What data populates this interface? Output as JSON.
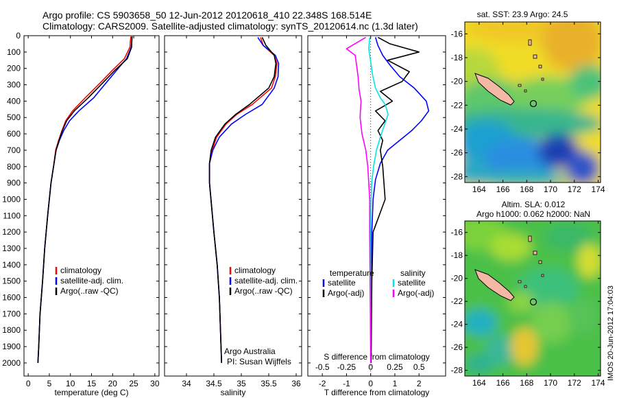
{
  "header": {
    "line1": "Argo profile: CS 5903658_50 12-Jun-2012 20120618_410 22.348S 168.514E",
    "line2": "Climatology: CARS2009. Satellite-adjusted climatology: synTS_20120614.nc (1.3d later)"
  },
  "credit": {
    "org": "Argo Australia",
    "pi": "PI: Susan Wijffels"
  },
  "watermark": "IMOS 20-Jun-2012 17:04:03",
  "colors": {
    "climatology": "#ff0000",
    "satellite": "#0000ff",
    "argo": "#000000",
    "sat_salinity": "#00e5e5",
    "argo_salinity": "#ff00ff",
    "land": "#f4b8a4",
    "site_marker": "#000000"
  },
  "chart_data": [
    {
      "id": "temperature",
      "type": "line",
      "xlabel": "temperature (deg C)",
      "ylabel": "",
      "xlim": [
        -1,
        31
      ],
      "ylim": [
        0,
        2080
      ],
      "y_reversed": true,
      "xticks": [
        0,
        5,
        10,
        15,
        20,
        25,
        30
      ],
      "yticks": [
        0,
        100,
        200,
        300,
        400,
        500,
        600,
        700,
        800,
        900,
        1000,
        1100,
        1200,
        1300,
        1400,
        1500,
        1600,
        1700,
        1800,
        1900,
        2000
      ],
      "legend": [
        "climatology",
        "satellite-adj. clim.",
        "Argo(..raw -QC)"
      ],
      "series": [
        {
          "name": "climatology",
          "color": "#ff0000",
          "x": [
            24.3,
            24.1,
            22.8,
            20,
            17,
            13.5,
            10.5,
            8.9,
            8,
            7.2,
            6.5,
            6,
            5.4,
            4.6,
            3.9,
            3.4,
            2.8,
            2.5,
            2.3
          ],
          "y": [
            5,
            70,
            140,
            210,
            290,
            380,
            460,
            520,
            580,
            640,
            700,
            800,
            900,
            1100,
            1300,
            1500,
            1700,
            1900,
            2000
          ]
        },
        {
          "name": "satellite-adj. clim.",
          "color": "#0000ff",
          "x": [
            24.6,
            24.4,
            23.3,
            21,
            18.4,
            15.5,
            12,
            9.8,
            8.4,
            7.4,
            6.6,
            6,
            5.4,
            4.6,
            3.9,
            3.4,
            2.8,
            2.5,
            2.3
          ],
          "y": [
            5,
            70,
            140,
            210,
            290,
            380,
            460,
            520,
            580,
            640,
            700,
            800,
            900,
            1100,
            1300,
            1500,
            1700,
            1900,
            2000
          ]
        },
        {
          "name": "Argo(..raw -QC)",
          "color": "#000000",
          "x": [
            24.6,
            24.5,
            23.5,
            20.6,
            17.6,
            14.2,
            10.9,
            9.1,
            8.1,
            7.3,
            6.6,
            6,
            5.4,
            4.6,
            3.9,
            3.4,
            2.8,
            2.5,
            2.3
          ],
          "y": [
            5,
            70,
            140,
            210,
            290,
            380,
            460,
            520,
            580,
            640,
            700,
            800,
            900,
            1100,
            1300,
            1500,
            1700,
            1900,
            2000
          ]
        }
      ]
    },
    {
      "id": "salinity",
      "type": "line",
      "xlabel": "salinity",
      "ylabel": "",
      "xlim": [
        33.6,
        36.1
      ],
      "ylim": [
        0,
        2080
      ],
      "y_reversed": true,
      "xticks": [
        34,
        34.5,
        35,
        35.5,
        36
      ],
      "legend": [
        "climatology",
        "satellite-adj. clim.",
        "Argo(..raw -QC)"
      ],
      "series": [
        {
          "name": "climatology",
          "color": "#ff0000",
          "x": [
            35.35,
            35.4,
            35.6,
            35.65,
            35.62,
            35.55,
            35.2,
            34.92,
            34.72,
            34.55,
            34.47,
            34.42,
            34.42,
            34.46,
            34.5,
            34.56,
            34.6,
            34.62,
            34.64
          ],
          "y": [
            10,
            60,
            120,
            170,
            250,
            320,
            420,
            480,
            540,
            620,
            700,
            780,
            900,
            1050,
            1200,
            1400,
            1600,
            1800,
            2000
          ]
        },
        {
          "name": "satellite-adj. clim.",
          "color": "#0000ff",
          "x": [
            35.3,
            35.4,
            35.62,
            35.68,
            35.67,
            35.6,
            35.38,
            35.08,
            34.82,
            34.6,
            34.48,
            34.42,
            34.42,
            34.46,
            34.5,
            34.56,
            34.6,
            34.62,
            34.64
          ],
          "y": [
            10,
            60,
            120,
            170,
            250,
            320,
            420,
            480,
            540,
            620,
            700,
            780,
            900,
            1050,
            1200,
            1400,
            1600,
            1800,
            2000
          ]
        },
        {
          "name": "Argo(..raw -QC)",
          "color": "#000000",
          "x": [
            35.38,
            35.45,
            35.6,
            35.63,
            35.6,
            35.5,
            35.15,
            34.9,
            34.7,
            34.53,
            34.45,
            34.42,
            34.42,
            34.46,
            34.5,
            34.56,
            34.6,
            34.62,
            34.64
          ],
          "y": [
            10,
            60,
            120,
            170,
            250,
            320,
            420,
            480,
            540,
            620,
            700,
            780,
            900,
            1050,
            1200,
            1400,
            1600,
            1800,
            2000
          ]
        }
      ]
    },
    {
      "id": "differences",
      "type": "line",
      "xlabel": "T difference from climatology",
      "xlabel_top": "S difference from climatology",
      "xlim": [
        -2.6,
        3.1
      ],
      "ylim": [
        0,
        2080
      ],
      "y_reversed": true,
      "xticks": [
        -2,
        -1,
        0,
        1,
        2
      ],
      "s_ticks": [
        -0.5,
        -0.25,
        0,
        0.25,
        0.5
      ],
      "s_tick_labels": [
        "-0.5",
        "-0.25",
        "0",
        "0.25",
        "0.5"
      ],
      "s_scale_factor": 4,
      "legend_headers": [
        "temperature",
        "salinity"
      ],
      "legend": [
        "satellite",
        "Argo(-adj)",
        "satellite",
        "Argo(-adj)"
      ],
      "series": [
        {
          "name": "temperature satellite",
          "color": "#0000ff",
          "x": [
            0.2,
            0.3,
            0.5,
            0.8,
            1.2,
            1.8,
            2.3,
            2.4,
            2.1,
            1.7,
            1.2,
            0.7,
            0.4,
            0.2,
            0.1,
            0.05,
            0.03,
            0.02,
            0.01
          ],
          "y": [
            10,
            60,
            120,
            180,
            250,
            320,
            400,
            460,
            520,
            580,
            640,
            700,
            780,
            880,
            1000,
            1200,
            1500,
            1800,
            2000
          ]
        },
        {
          "name": "temperature Argo(-adj)",
          "color": "#000000",
          "x": [
            0.3,
            0.8,
            2.0,
            0.7,
            1.6,
            1.3,
            0.4,
            0.9,
            0.2,
            0.6,
            0.3,
            0.5,
            0.4,
            0.5,
            0.6,
            0.1,
            0.05,
            0.02
          ],
          "y": [
            10,
            50,
            100,
            150,
            220,
            280,
            340,
            400,
            460,
            520,
            580,
            640,
            700,
            800,
            1000,
            1200,
            1500,
            2000
          ]
        },
        {
          "name": "salinity satellite",
          "color": "#00e5e5",
          "x": [
            -0.01,
            -0.02,
            0.0,
            0.02,
            0.05,
            0.1,
            0.15,
            0.18,
            0.14,
            0.1,
            0.06,
            0.03,
            0.01,
            0.0,
            0.0,
            0.0
          ],
          "y": [
            10,
            80,
            160,
            240,
            320,
            380,
            420,
            480,
            550,
            620,
            700,
            800,
            900,
            1100,
            1500,
            2000
          ]
        },
        {
          "name": "salinity Argo(-adj)",
          "color": "#ff00ff",
          "x": [
            -0.05,
            -0.25,
            -0.16,
            -0.15,
            -0.13,
            -0.12,
            -0.1,
            -0.11,
            -0.09,
            -0.05,
            -0.03,
            -0.01,
            -0.01,
            0.0
          ],
          "y": [
            10,
            80,
            120,
            160,
            250,
            330,
            400,
            500,
            600,
            700,
            800,
            1000,
            1200,
            2000
          ]
        }
      ]
    }
  ],
  "maps": [
    {
      "id": "sst-map",
      "title": "sat. SST: 23.9 Argo: 24.5",
      "subtitle": "",
      "lon_ticks": [
        164,
        166,
        168,
        170,
        172,
        174
      ],
      "lat_ticks": [
        "-16",
        "-18",
        "-20",
        "-22",
        "-24",
        "-26",
        "-28"
      ],
      "site": {
        "lon": 168.514,
        "lat": -22.348
      }
    },
    {
      "id": "sla-map",
      "title": "Altim. SLA: 0.012",
      "subtitle": "Argo h1000: 0.062 h2000: NaN",
      "lon_ticks": [
        164,
        166,
        168,
        170,
        172,
        174
      ],
      "lat_ticks": [
        "-16",
        "-18",
        "-20",
        "-22",
        "-24",
        "-26",
        "-28"
      ],
      "site": {
        "lon": 168.514,
        "lat": -22.348
      }
    }
  ]
}
